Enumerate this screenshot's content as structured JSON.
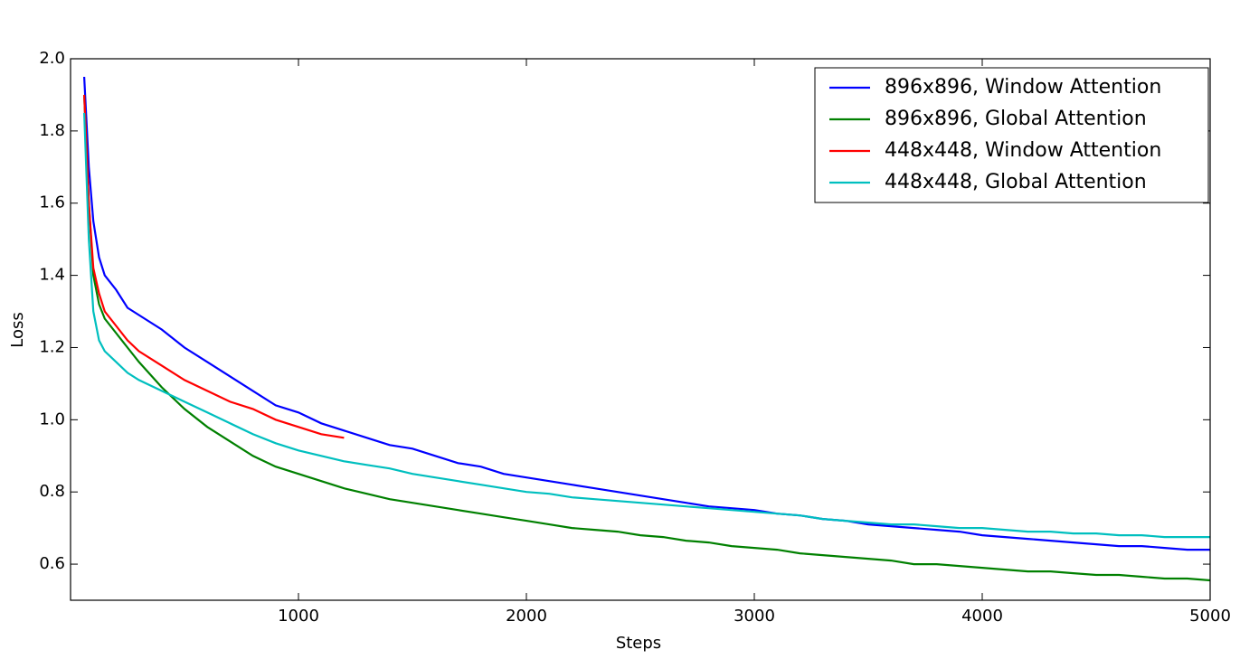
{
  "chart_data": {
    "type": "line",
    "x_label": "Steps",
    "y_label": "Loss",
    "x": [
      60,
      80,
      100,
      125,
      150,
      200,
      250,
      300,
      400,
      500,
      600,
      700,
      800,
      900,
      1000,
      1100,
      1200,
      1300,
      1400,
      1500,
      1600,
      1700,
      1800,
      1900,
      2000,
      2100,
      2200,
      2300,
      2400,
      2500,
      2600,
      2700,
      2800,
      2900,
      3000,
      3100,
      3200,
      3300,
      3400,
      3500,
      3600,
      3700,
      3800,
      3900,
      4000,
      4100,
      4200,
      4300,
      4400,
      4500,
      4600,
      4700,
      4800,
      4900,
      5000
    ],
    "series": [
      {
        "name": "896x896, Window Attention",
        "color": "#0000ff",
        "values": [
          1.95,
          1.7,
          1.55,
          1.45,
          1.4,
          1.36,
          1.31,
          1.29,
          1.25,
          1.2,
          1.16,
          1.12,
          1.08,
          1.04,
          1.02,
          0.99,
          0.97,
          0.95,
          0.93,
          0.92,
          0.9,
          0.88,
          0.87,
          0.85,
          0.84,
          0.83,
          0.82,
          0.81,
          0.8,
          0.79,
          0.78,
          0.77,
          0.76,
          0.755,
          0.75,
          0.74,
          0.735,
          0.725,
          0.72,
          0.71,
          0.705,
          0.7,
          0.695,
          0.69,
          0.68,
          0.675,
          0.67,
          0.665,
          0.66,
          0.655,
          0.65,
          0.65,
          0.645,
          0.64,
          0.64
        ]
      },
      {
        "name": "896x896, Global Attention",
        "color": "#008000",
        "values": [
          1.9,
          1.6,
          1.4,
          1.32,
          1.28,
          1.24,
          1.2,
          1.16,
          1.09,
          1.03,
          0.98,
          0.94,
          0.9,
          0.87,
          0.85,
          0.83,
          0.81,
          0.795,
          0.78,
          0.77,
          0.76,
          0.75,
          0.74,
          0.73,
          0.72,
          0.71,
          0.7,
          0.695,
          0.69,
          0.68,
          0.675,
          0.665,
          0.66,
          0.65,
          0.645,
          0.64,
          0.63,
          0.625,
          0.62,
          0.615,
          0.61,
          0.6,
          0.6,
          0.595,
          0.59,
          0.585,
          0.58,
          0.58,
          0.575,
          0.57,
          0.57,
          0.565,
          0.56,
          0.56,
          0.555
        ]
      },
      {
        "name": "448x448, Window Attention",
        "color": "#ff0000",
        "values": [
          1.9,
          1.6,
          1.42,
          1.35,
          1.3,
          1.26,
          1.22,
          1.19,
          1.15,
          1.11,
          1.08,
          1.05,
          1.03,
          1.0,
          0.98,
          0.96,
          0.95,
          null,
          null,
          null,
          null,
          null,
          null,
          null,
          null,
          null,
          null,
          null,
          null,
          null,
          null,
          null,
          null,
          null,
          null,
          null,
          null,
          null,
          null,
          null,
          null,
          null,
          null,
          null,
          null,
          null,
          null,
          null,
          null,
          null,
          null,
          null,
          null,
          null,
          null
        ]
      },
      {
        "name": "448x448, Global Attention",
        "color": "#00bfbf",
        "values": [
          1.85,
          1.5,
          1.3,
          1.22,
          1.19,
          1.16,
          1.13,
          1.11,
          1.08,
          1.05,
          1.02,
          0.99,
          0.96,
          0.935,
          0.915,
          0.9,
          0.885,
          0.875,
          0.865,
          0.85,
          0.84,
          0.83,
          0.82,
          0.81,
          0.8,
          0.795,
          0.785,
          0.78,
          0.775,
          0.77,
          0.765,
          0.76,
          0.755,
          0.75,
          0.745,
          0.74,
          0.735,
          0.725,
          0.72,
          0.715,
          0.71,
          0.71,
          0.705,
          0.7,
          0.7,
          0.695,
          0.69,
          0.69,
          0.685,
          0.685,
          0.68,
          0.68,
          0.675,
          0.675,
          0.675
        ]
      }
    ],
    "xlim": [
      0,
      5000
    ],
    "xticks": [
      1000,
      2000,
      3000,
      4000,
      5000
    ],
    "ylim": [
      0.5,
      2.0
    ],
    "yticks": [
      {
        "value": 0.6,
        "label": "0.6"
      },
      {
        "value": 0.8,
        "label": "0.8"
      },
      {
        "value": 1.0,
        "label": "1.0"
      },
      {
        "value": 1.2,
        "label": "1.2"
      },
      {
        "value": 1.4,
        "label": "1.4"
      },
      {
        "value": 1.6,
        "label": "1.6"
      },
      {
        "value": 1.8,
        "label": "1.8"
      },
      {
        "value": 2.0,
        "label": "2.0"
      }
    ],
    "legend": "upper right"
  }
}
